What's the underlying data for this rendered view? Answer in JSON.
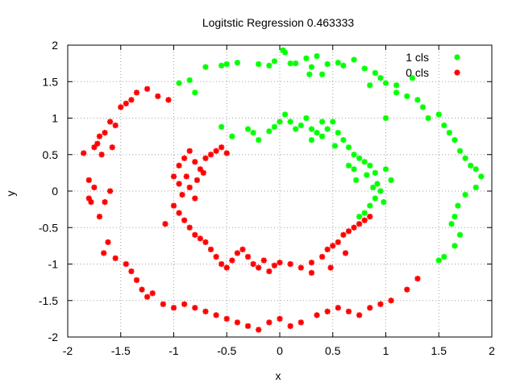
{
  "chart_data": {
    "type": "scatter",
    "title": "Logitstic Regression 0.463333",
    "xlabel": "x",
    "ylabel": "y",
    "xlim": [
      -2,
      2
    ],
    "ylim": [
      -2,
      2
    ],
    "xticks": [
      "-2",
      "-1.5",
      "-1",
      "-0.5",
      "0",
      "0.5",
      "1",
      "1.5",
      "2"
    ],
    "yticks": [
      "-2",
      "-1.5",
      "-1",
      "-0.5",
      "0",
      "0.5",
      "1",
      "1.5",
      "2"
    ],
    "grid": true,
    "legend_position": "top-right",
    "series": [
      {
        "name": "1 cls",
        "color": "#00ff00",
        "points": [
          [
            -0.05,
            1.78
          ],
          [
            0.03,
            1.93
          ],
          [
            0.05,
            1.9
          ],
          [
            0.1,
            1.75
          ],
          [
            0.25,
            1.82
          ],
          [
            0.3,
            1.7
          ],
          [
            0.35,
            1.85
          ],
          [
            0.28,
            1.6
          ],
          [
            0.45,
            1.74
          ],
          [
            0.55,
            1.76
          ],
          [
            0.7,
            1.8
          ],
          [
            0.8,
            1.68
          ],
          [
            0.9,
            1.62
          ],
          [
            0.95,
            1.55
          ],
          [
            0.85,
            1.45
          ],
          [
            1.0,
            1.48
          ],
          [
            1.1,
            1.35
          ],
          [
            1.2,
            1.3
          ],
          [
            1.25,
            1.55
          ],
          [
            1.3,
            1.25
          ],
          [
            1.35,
            1.15
          ],
          [
            1.4,
            1.0
          ],
          [
            1.5,
            1.05
          ],
          [
            1.55,
            0.9
          ],
          [
            1.6,
            0.8
          ],
          [
            1.65,
            0.7
          ],
          [
            1.7,
            0.55
          ],
          [
            1.75,
            0.45
          ],
          [
            1.8,
            0.35
          ],
          [
            1.85,
            0.3
          ],
          [
            1.9,
            0.2
          ],
          [
            1.85,
            0.05
          ],
          [
            1.75,
            -0.05
          ],
          [
            1.68,
            -0.2
          ],
          [
            1.65,
            -0.35
          ],
          [
            1.62,
            -0.45
          ],
          [
            1.7,
            -0.6
          ],
          [
            1.65,
            -0.75
          ],
          [
            1.55,
            -0.9
          ],
          [
            1.5,
            -0.95
          ],
          [
            -0.1,
            1.72
          ],
          [
            -0.2,
            1.74
          ],
          [
            -0.4,
            1.76
          ],
          [
            -0.5,
            1.74
          ],
          [
            -0.55,
            1.72
          ],
          [
            -0.7,
            1.7
          ],
          [
            -0.85,
            1.52
          ],
          [
            -0.95,
            1.48
          ],
          [
            -0.8,
            1.35
          ],
          [
            0.15,
            1.75
          ],
          [
            0.4,
            1.6
          ],
          [
            0.6,
            1.72
          ],
          [
            -0.55,
            0.88
          ],
          [
            -0.45,
            0.75
          ],
          [
            -0.3,
            0.85
          ],
          [
            -0.25,
            0.8
          ],
          [
            -0.2,
            0.7
          ],
          [
            -0.1,
            0.82
          ],
          [
            -0.05,
            0.88
          ],
          [
            0.0,
            0.95
          ],
          [
            0.05,
            1.05
          ],
          [
            0.15,
            0.85
          ],
          [
            0.2,
            0.9
          ],
          [
            0.25,
            1.0
          ],
          [
            0.3,
            0.85
          ],
          [
            0.35,
            0.8
          ],
          [
            0.4,
            0.75
          ],
          [
            0.45,
            0.85
          ],
          [
            0.5,
            0.95
          ],
          [
            0.55,
            0.8
          ],
          [
            0.6,
            0.7
          ],
          [
            0.65,
            0.6
          ],
          [
            0.7,
            0.5
          ],
          [
            0.75,
            0.45
          ],
          [
            0.8,
            0.4
          ],
          [
            0.85,
            0.35
          ],
          [
            0.9,
            0.25
          ],
          [
            0.92,
            0.1
          ],
          [
            0.95,
            0.0
          ],
          [
            0.9,
            -0.1
          ],
          [
            0.85,
            -0.2
          ],
          [
            0.8,
            -0.3
          ],
          [
            0.75,
            -0.35
          ],
          [
            0.7,
            0.3
          ],
          [
            0.65,
            0.35
          ],
          [
            0.72,
            0.15
          ],
          [
            0.82,
            0.22
          ],
          [
            0.88,
            0.05
          ],
          [
            1.0,
            0.3
          ],
          [
            1.05,
            0.15
          ],
          [
            0.98,
            -0.15
          ],
          [
            0.1,
            0.95
          ],
          [
            0.52,
            0.62
          ],
          [
            0.4,
            0.95
          ],
          [
            0.3,
            0.7
          ],
          [
            1.0,
            1.0
          ],
          [
            1.1,
            1.45
          ]
        ]
      },
      {
        "name": "0 cls",
        "color": "#ff0000",
        "points": [
          [
            -1.85,
            0.52
          ],
          [
            -1.8,
            0.15
          ],
          [
            -1.78,
            -0.15
          ],
          [
            -1.75,
            0.6
          ],
          [
            -1.72,
            0.65
          ],
          [
            -1.7,
            0.75
          ],
          [
            -1.68,
            0.5
          ],
          [
            -1.65,
            0.8
          ],
          [
            -1.6,
            0.95
          ],
          [
            -1.58,
            0.6
          ],
          [
            -1.55,
            0.9
          ],
          [
            -1.6,
            0.0
          ],
          [
            -1.65,
            -0.15
          ],
          [
            -1.7,
            -0.35
          ],
          [
            -1.75,
            0.05
          ],
          [
            -1.8,
            -0.1
          ],
          [
            -1.62,
            -0.7
          ],
          [
            -1.66,
            -0.85
          ],
          [
            -1.55,
            -0.92
          ],
          [
            -1.45,
            -1.0
          ],
          [
            -1.4,
            -1.1
          ],
          [
            -1.35,
            -1.22
          ],
          [
            -1.3,
            -1.35
          ],
          [
            -1.25,
            -1.45
          ],
          [
            -1.2,
            -1.4
          ],
          [
            -1.1,
            -1.55
          ],
          [
            -1.0,
            -1.6
          ],
          [
            -0.9,
            -1.55
          ],
          [
            -0.8,
            -1.6
          ],
          [
            -0.7,
            -1.65
          ],
          [
            -0.6,
            -1.7
          ],
          [
            -0.5,
            -1.75
          ],
          [
            -0.4,
            -1.8
          ],
          [
            -0.3,
            -1.85
          ],
          [
            -0.2,
            -1.9
          ],
          [
            -0.1,
            -1.8
          ],
          [
            0.0,
            -1.75
          ],
          [
            0.1,
            -1.85
          ],
          [
            0.2,
            -1.8
          ],
          [
            0.35,
            -1.7
          ],
          [
            0.45,
            -1.65
          ],
          [
            0.55,
            -1.6
          ],
          [
            0.65,
            -1.65
          ],
          [
            0.75,
            -1.7
          ],
          [
            0.85,
            -1.6
          ],
          [
            0.95,
            -1.55
          ],
          [
            1.05,
            -1.5
          ],
          [
            1.2,
            -1.35
          ],
          [
            1.3,
            -1.2
          ],
          [
            -1.5,
            1.15
          ],
          [
            -1.45,
            1.2
          ],
          [
            -1.4,
            1.25
          ],
          [
            -1.35,
            1.35
          ],
          [
            -1.25,
            1.4
          ],
          [
            -1.15,
            1.3
          ],
          [
            -1.05,
            1.25
          ],
          [
            -1.0,
            0.2
          ],
          [
            -0.95,
            0.35
          ],
          [
            -0.9,
            0.45
          ],
          [
            -0.85,
            0.55
          ],
          [
            -0.8,
            0.4
          ],
          [
            -0.75,
            0.3
          ],
          [
            -0.7,
            0.45
          ],
          [
            -0.65,
            0.5
          ],
          [
            -0.6,
            0.55
          ],
          [
            -0.55,
            0.6
          ],
          [
            -0.5,
            0.52
          ],
          [
            -0.95,
            0.1
          ],
          [
            -0.92,
            -0.05
          ],
          [
            -1.0,
            -0.2
          ],
          [
            -0.95,
            -0.3
          ],
          [
            -0.9,
            -0.4
          ],
          [
            -0.85,
            -0.5
          ],
          [
            -0.8,
            -0.6
          ],
          [
            -0.75,
            -0.65
          ],
          [
            -0.7,
            -0.7
          ],
          [
            -0.65,
            -0.8
          ],
          [
            -0.6,
            -0.9
          ],
          [
            -0.55,
            -1.0
          ],
          [
            -0.5,
            -1.05
          ],
          [
            -0.45,
            -0.95
          ],
          [
            -0.4,
            -0.85
          ],
          [
            -0.35,
            -0.8
          ],
          [
            -0.3,
            -0.9
          ],
          [
            -0.25,
            -1.0
          ],
          [
            -0.2,
            -1.05
          ],
          [
            -0.1,
            -1.1
          ],
          [
            -0.05,
            -1.02
          ],
          [
            0.0,
            -0.98
          ],
          [
            0.1,
            -1.0
          ],
          [
            0.2,
            -1.05
          ],
          [
            0.3,
            -0.98
          ],
          [
            0.4,
            -0.9
          ],
          [
            0.45,
            -0.8
          ],
          [
            0.5,
            -0.75
          ],
          [
            0.55,
            -0.7
          ],
          [
            0.6,
            -0.6
          ],
          [
            0.65,
            -0.55
          ],
          [
            0.7,
            -0.5
          ],
          [
            0.75,
            -0.45
          ],
          [
            0.8,
            -0.4
          ],
          [
            0.85,
            -0.35
          ],
          [
            0.62,
            -0.85
          ],
          [
            0.48,
            -1.05
          ],
          [
            0.3,
            -1.12
          ],
          [
            -0.85,
            0.05
          ],
          [
            -0.8,
            -0.1
          ],
          [
            -0.88,
            0.2
          ],
          [
            -0.78,
            0.15
          ],
          [
            -0.72,
            0.25
          ],
          [
            -1.08,
            -0.45
          ],
          [
            -0.15,
            -0.95
          ]
        ]
      }
    ]
  }
}
